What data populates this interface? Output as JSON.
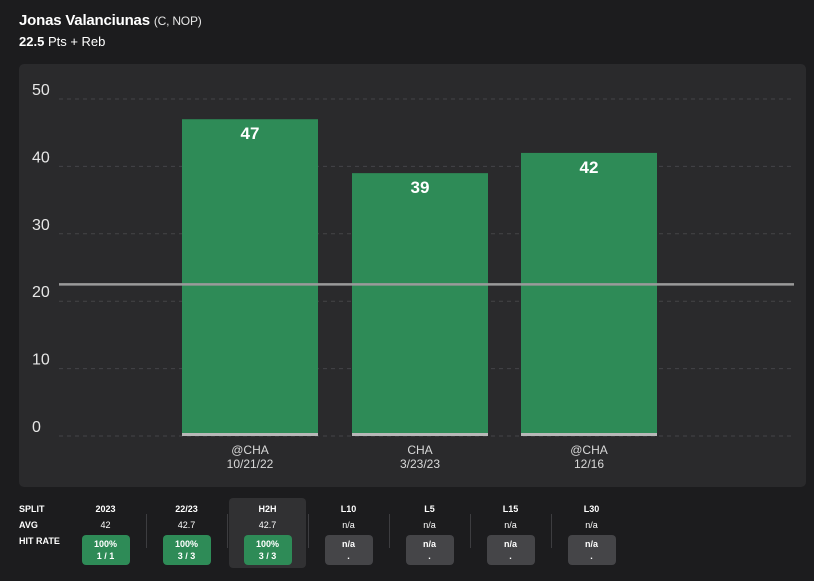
{
  "header": {
    "player_name": "Jonas Valanciunas",
    "player_meta": "(C, NOP)",
    "prop_value": "22.5",
    "prop_market": "Pts + Reb"
  },
  "colors": {
    "bar": "#2e8b57",
    "line": "#9a9a9a",
    "panel": "#2a2a2c",
    "background": "#1c1c1e"
  },
  "chart_data": {
    "type": "bar",
    "categories": [
      [
        "@CHA",
        "10/21/22"
      ],
      [
        "CHA",
        "3/23/23"
      ],
      [
        "@CHA",
        "12/16"
      ]
    ],
    "values": [
      47,
      39,
      42
    ],
    "data_labels": [
      "47",
      "39",
      "42"
    ],
    "yticks": [
      "50",
      "40",
      "30",
      "20",
      "10",
      "0"
    ],
    "ylim": [
      0,
      50
    ],
    "line_value": 22.5,
    "grid": true
  },
  "stats": {
    "row_labels": [
      "SPLIT",
      "AVG",
      "HIT RATE"
    ],
    "columns": [
      {
        "split": "2023",
        "avg": "42",
        "rate": "100%",
        "count": "1 / 1",
        "hit": true
      },
      {
        "split": "22/23",
        "avg": "42.7",
        "rate": "100%",
        "count": "3 / 3",
        "hit": true
      },
      {
        "split": "H2H",
        "avg": "42.7",
        "rate": "100%",
        "count": "3 / 3",
        "hit": true
      },
      {
        "split": "L10",
        "avg": "n/a",
        "rate": "n/a",
        "count": ".",
        "hit": false
      },
      {
        "split": "L5",
        "avg": "n/a",
        "rate": "n/a",
        "count": ".",
        "hit": false
      },
      {
        "split": "L15",
        "avg": "n/a",
        "rate": "n/a",
        "count": ".",
        "hit": false
      },
      {
        "split": "L30",
        "avg": "n/a",
        "rate": "n/a",
        "count": ".",
        "hit": false
      }
    ]
  }
}
